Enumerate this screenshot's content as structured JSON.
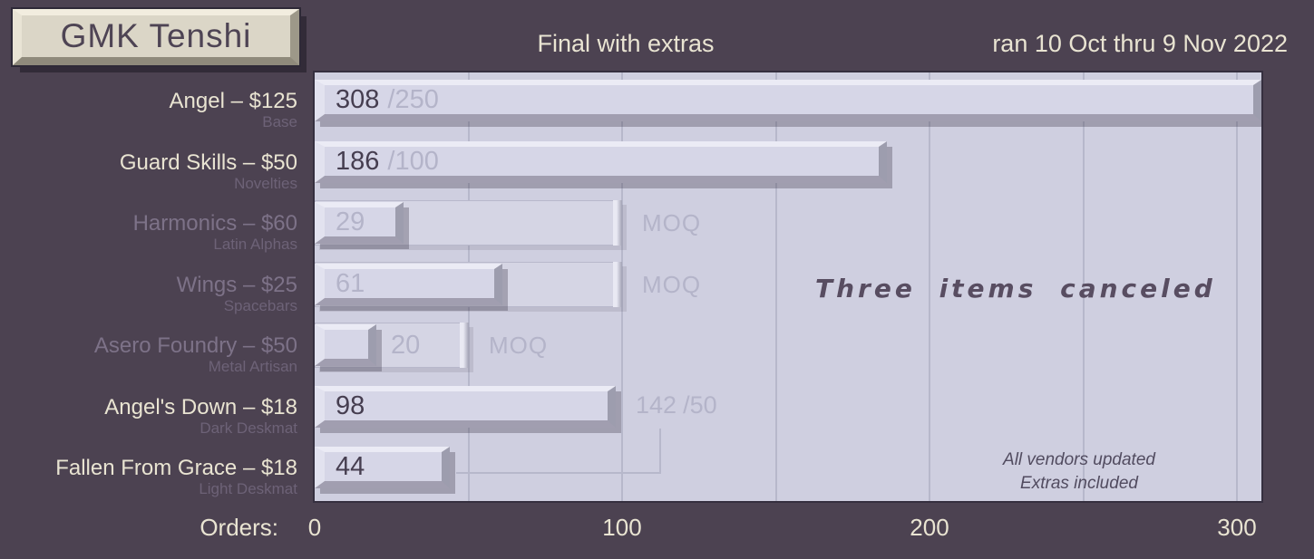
{
  "title_key": "GMK Tenshi",
  "header": {
    "status": "Final with extras",
    "dates": "ran 10 Oct thru 9 Nov 2022"
  },
  "axis": {
    "label": "Orders:",
    "ticks": [
      {
        "label": "0",
        "value": 0
      },
      {
        "label": "100",
        "value": 100
      },
      {
        "label": "200",
        "value": 200
      },
      {
        "label": "300",
        "value": 300
      }
    ],
    "grid_values": [
      50,
      100,
      150,
      200,
      250,
      300
    ]
  },
  "annotations": {
    "canceled_note": "Three items canceled",
    "vendor_note_line1": "All vendors updated",
    "vendor_note_line2": "Extras included",
    "deskmat_combined_value": "142",
    "deskmat_combined_moq": "/50"
  },
  "chart_data": {
    "type": "bar",
    "orientation": "horizontal",
    "title": "GMK Tenshi",
    "subtitle": "Final with extras",
    "period": "ran 10 Oct thru 9 Nov 2022",
    "xlabel": "Orders",
    "xlim": [
      0,
      308
    ],
    "gridlines_every": 50,
    "items": [
      {
        "id": "angel",
        "label": "Angel – $125",
        "sub": "Base",
        "orders": 308,
        "moq": 250,
        "value_text": "308",
        "suffix_text": "/250",
        "moq_text": null,
        "canceled": false,
        "value_inside": true
      },
      {
        "id": "guard-skills",
        "label": "Guard Skills – $50",
        "sub": "Novelties",
        "orders": 186,
        "moq": 100,
        "value_text": "186",
        "suffix_text": "/100",
        "moq_text": null,
        "canceled": false,
        "value_inside": true
      },
      {
        "id": "harmonics",
        "label": "Harmonics – $60",
        "sub": "Latin Alphas",
        "orders": 29,
        "moq": 100,
        "value_text": "29",
        "suffix_text": null,
        "moq_text": "MOQ",
        "canceled": true,
        "value_inside": true
      },
      {
        "id": "wings",
        "label": "Wings – $25",
        "sub": "Spacebars",
        "orders": 61,
        "moq": 100,
        "value_text": "61",
        "suffix_text": null,
        "moq_text": "MOQ",
        "canceled": true,
        "value_inside": true
      },
      {
        "id": "asero-foundry",
        "label": "Asero Foundry – $50",
        "sub": "Metal Artisan",
        "orders": 20,
        "moq": 50,
        "value_text": "20",
        "suffix_text": null,
        "moq_text": "MOQ",
        "canceled": true,
        "value_inside": false
      },
      {
        "id": "angels-down",
        "label": "Angel's Down – $18",
        "sub": "Dark Deskmat",
        "orders": 98,
        "moq": null,
        "value_text": "98",
        "suffix_text": null,
        "moq_text": null,
        "canceled": false,
        "value_inside": true
      },
      {
        "id": "fallen-from-grace",
        "label": "Fallen From Grace – $18",
        "sub": "Light Deskmat",
        "orders": 44,
        "moq": null,
        "value_text": "44",
        "suffix_text": null,
        "moq_text": null,
        "canceled": false,
        "value_inside": true
      }
    ],
    "combined_deskmats": {
      "items": [
        "Angel's Down",
        "Fallen From Grace"
      ],
      "orders": 142,
      "moq": 50
    }
  },
  "colors": {
    "page_bg": "#4c4251",
    "cream_text": "#e9e4d2",
    "plot_bg": "#cfcfe0",
    "gridline": "#b7b8cb",
    "bar_face": "#d6d6e7",
    "dark_value_text": "#463e50",
    "muted_value_text": "#b4b4c9",
    "canceled_label": "#7d7288",
    "sub_label": "#6d6277",
    "keycap_cream": "#dbd6c7",
    "handwriting": "#584d61"
  }
}
